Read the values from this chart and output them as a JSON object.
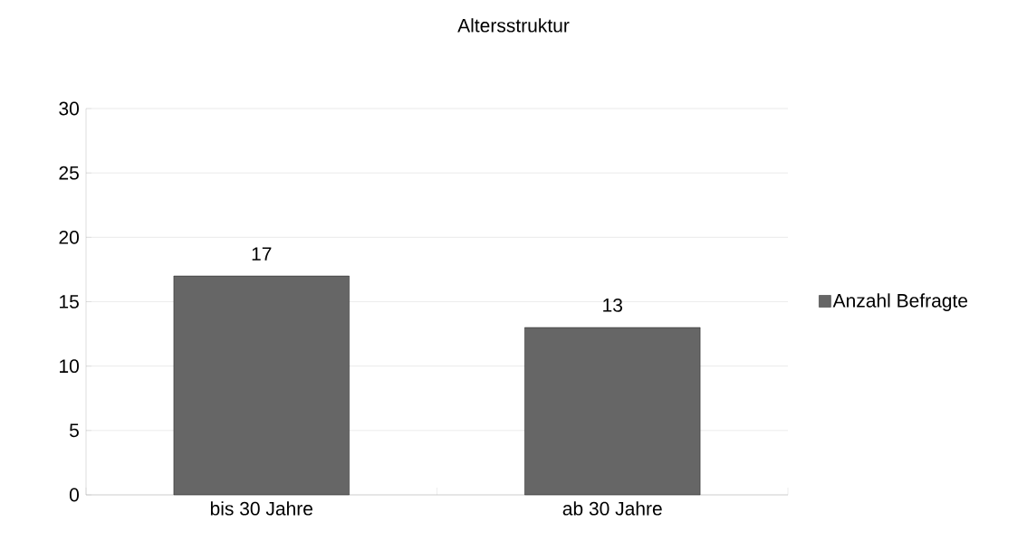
{
  "chart_data": {
    "type": "bar",
    "title": "Altersstruktur",
    "categories": [
      "bis 30 Jahre",
      "ab 30 Jahre"
    ],
    "series": [
      {
        "name": "Anzahl Befragte",
        "color": "#666666",
        "values": [
          17,
          13
        ]
      }
    ],
    "ylim": [
      0,
      30
    ],
    "yticks": [
      0,
      5,
      10,
      15,
      20,
      25,
      30
    ],
    "grid": "y",
    "legend": "right",
    "data_labels": true
  }
}
